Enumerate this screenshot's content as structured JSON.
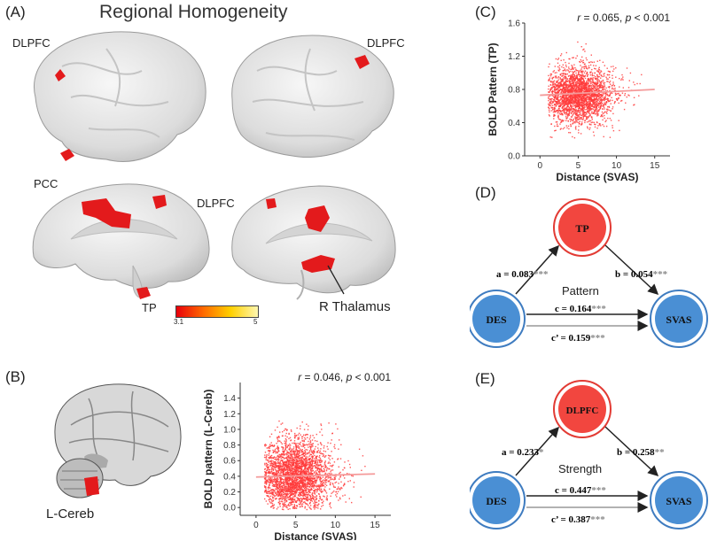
{
  "panelA": {
    "label": "(A)",
    "title": "Regional Homogeneity",
    "labels": {
      "dlpfc_left": "DLPFC",
      "dlpfc_right": "DLPFC",
      "pcc": "PCC",
      "dlpfc_medial": "DLPFC",
      "tp": "TP",
      "thalamus": "R Thalamus"
    },
    "colorbar": {
      "min": "3.1",
      "max": "5",
      "colors": [
        "#e8000b",
        "#ff6a00",
        "#ffd000",
        "#fff7b0"
      ]
    }
  },
  "panelB": {
    "label": "(B)",
    "region": "L-Cereb"
  },
  "panelC": {
    "label": "(C)"
  },
  "panelD": {
    "label": "(D)",
    "mediator": "TP",
    "x": "DES",
    "y": "SVAS",
    "a": "a = 0.083",
    "a_sig": "***",
    "b": "b = 0.054",
    "b_sig": "***",
    "c": "c = 0.164",
    "c_sig": "***",
    "cprime": "c’ = 0.159",
    "cprime_sig": "***",
    "type": "Pattern"
  },
  "panelE": {
    "label": "(E)",
    "mediator": "DLPFC",
    "x": "DES",
    "y": "SVAS",
    "a": "a = 0.233",
    "a_sig": "*",
    "b": "b = 0.258",
    "b_sig": "**",
    "c": "c = 0.447",
    "c_sig": "***",
    "cprime": "c’ = 0.387",
    "cprime_sig": "***",
    "type": "Strength"
  },
  "colors": {
    "scatter": "#ff3b3b",
    "node_red": "#f2463f",
    "node_blue": "#4a8fd4",
    "sig_gray": "#8a8a8a"
  },
  "chart_data": [
    {
      "type": "scatter",
      "panel": "C",
      "annotation": {
        "r": "r = 0.065",
        "p": "p < 0.001"
      },
      "xlabel": "Distance (SVAS)",
      "ylabel": "BOLD Pattern (TP)",
      "xlim": [
        -2,
        17
      ],
      "ylim": [
        0,
        1.6
      ],
      "xticks": [
        "0",
        "5",
        "10",
        "15"
      ],
      "yticks": [
        "0.0",
        "0.4",
        "0.8",
        "1.2",
        "1.6"
      ],
      "fit": {
        "x": [
          0,
          15
        ],
        "y": [
          0.73,
          0.8
        ]
      },
      "cloud": {
        "x_center": 5,
        "y_center": 0.74,
        "x_sd": 2.2,
        "y_sd": 0.17,
        "x_range": [
          1,
          16
        ],
        "y_range": [
          0.22,
          1.38
        ],
        "n": 2600
      }
    },
    {
      "type": "scatter",
      "panel": "B",
      "annotation": {
        "r": "r = 0.046",
        "p": "p < 0.001"
      },
      "xlabel": "Distance (SVAS)",
      "ylabel": "BOLD pattern (L-Cereb)",
      "xlim": [
        -2,
        17
      ],
      "ylim": [
        -0.1,
        1.6
      ],
      "xticks": [
        "0",
        "5",
        "10",
        "15"
      ],
      "yticks": [
        "0.0",
        "0.2",
        "0.4",
        "0.6",
        "0.8",
        "1.0",
        "1.2",
        "1.4"
      ],
      "fit": {
        "x": [
          0,
          15
        ],
        "y": [
          0.39,
          0.43
        ]
      },
      "cloud": {
        "x_center": 5,
        "y_center": 0.42,
        "x_sd": 2.3,
        "y_sd": 0.24,
        "x_range": [
          1,
          16
        ],
        "y_range": [
          -0.02,
          1.36
        ],
        "n": 3000
      }
    }
  ]
}
